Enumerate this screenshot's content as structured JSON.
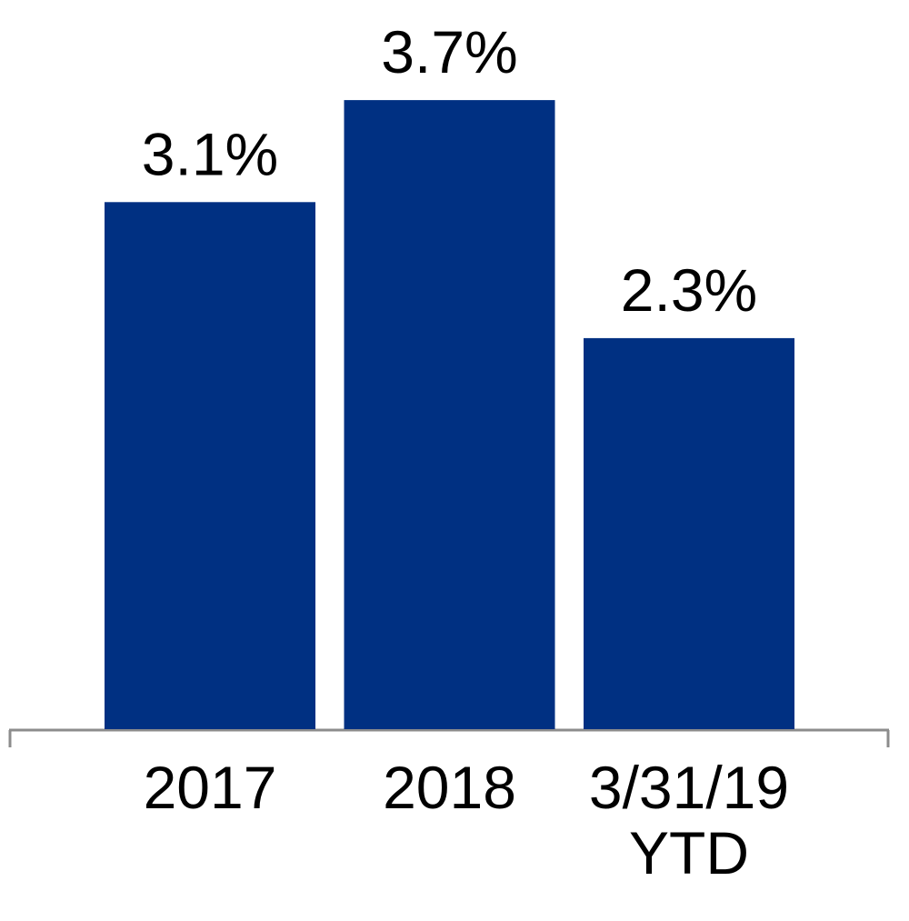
{
  "chart_data": {
    "type": "bar",
    "categories": [
      "2017",
      "2018",
      "3/31/19\nYTD"
    ],
    "values": [
      3.1,
      3.7,
      2.3
    ],
    "value_labels": [
      "3.1%",
      "3.7%",
      "2.3%"
    ],
    "color": "#003082"
  }
}
